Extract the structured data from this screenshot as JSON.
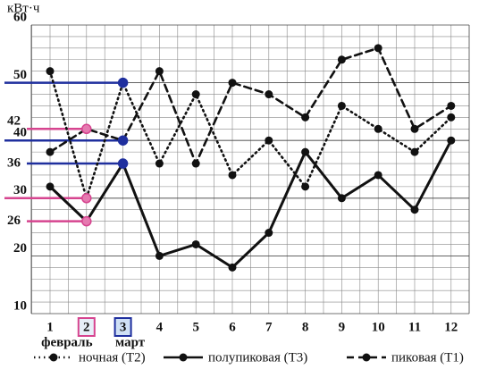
{
  "chart_data": {
    "type": "line",
    "y_label": "кВт·ч",
    "categories": [
      "1",
      "2",
      "3",
      "4",
      "5",
      "6",
      "7",
      "8",
      "9",
      "10",
      "11",
      "12"
    ],
    "ylim": [
      10,
      60
    ],
    "yticks": [
      10,
      20,
      30,
      40,
      50,
      60
    ],
    "grid": true,
    "series": [
      {
        "name": "ночная (Т2)",
        "color": "#111111",
        "dash": "dotted",
        "values": [
          52,
          30,
          50,
          36,
          48,
          34,
          40,
          32,
          46,
          42,
          38,
          44
        ]
      },
      {
        "name": "полупиковая (Т3)",
        "color": "#111111",
        "dash": "solid",
        "values": [
          32,
          26,
          36,
          20,
          22,
          18,
          24,
          38,
          30,
          34,
          28,
          40
        ]
      },
      {
        "name": "пиковая (Т1)",
        "color": "#111111",
        "dash": "dashed",
        "values": [
          38,
          42,
          40,
          52,
          36,
          50,
          48,
          44,
          54,
          56,
          42,
          46
        ]
      }
    ],
    "annotations": [
      {
        "text": "февраль",
        "category": "2",
        "color": "#d6448f",
        "values": [
          42,
          30,
          26
        ]
      },
      {
        "text": "март",
        "category": "3",
        "color": "#1f2f9e",
        "values": [
          50,
          40,
          36
        ]
      }
    ]
  }
}
